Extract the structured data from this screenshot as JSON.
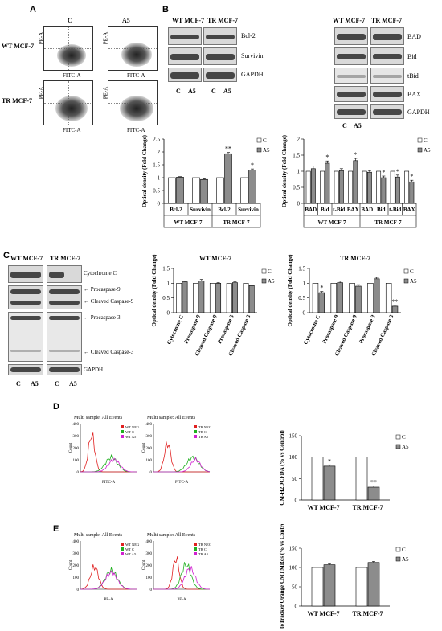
{
  "panels": {
    "A": "A",
    "B": "B",
    "C": "C",
    "D": "D",
    "E": "E"
  },
  "panelA": {
    "col_c": "C",
    "col_a5": "A5",
    "row_wt": "WT MCF-7",
    "row_tr": "TR MCF-7",
    "y_axis": "PE-A",
    "x_axis": "FITC-A"
  },
  "panelB": {
    "left_groups": [
      "WT MCF-7",
      "TR MCF-7"
    ],
    "left_bands": [
      "Bcl-2",
      "Survivin",
      "GAPDH"
    ],
    "left_lanes": [
      "C",
      "A5",
      "C",
      "A5"
    ],
    "right_groups": [
      "WT MCF-7",
      "TR MCF-7"
    ],
    "right_bands": [
      "BAD",
      "Bid",
      "tBid",
      "BAX",
      "GAPDH"
    ],
    "right_lanes": [
      "C",
      "A5"
    ]
  },
  "panelC": {
    "groups": [
      "WT MCF-7",
      "TR MCF-7"
    ],
    "bands": [
      "Cytochrome C",
      "← Procaspase-9",
      "← Cleaved Caspase-9",
      "← Procaspase-3",
      "← Cleaved Caspase-3",
      "GAPDH"
    ],
    "lanes": [
      "C",
      "A5",
      "C",
      "A5"
    ]
  },
  "panelD": {
    "hist1_title": "Multi sample: All Events",
    "hist2_title": "Multi sample: All Events",
    "hist1_legend": [
      "WT NEG",
      "WT C",
      "WT A5"
    ],
    "hist2_legend": [
      "TR NEG",
      "TR C",
      "TR A5"
    ],
    "x_axis": "FITC-A",
    "y_axis": "Count",
    "y_ticks": [
      "0",
      "100",
      "200",
      "300",
      "400"
    ]
  },
  "panelE": {
    "hist1_title": "Multi sample: All Events",
    "hist2_title": "Multi sample: All Events",
    "hist1_legend": [
      "WT NEG",
      "WT C",
      "WT A5"
    ],
    "hist2_legend": [
      "TR NEG",
      "TR C",
      "TR A5"
    ],
    "x_axis": "PE-A",
    "y_axis": "Count",
    "y_ticks": [
      "0",
      "100",
      "200",
      "300",
      "400"
    ]
  },
  "colors": {
    "neg": "#e02020",
    "c": "#20b020",
    "a5": "#d020d0",
    "bar_c": "#ffffff",
    "bar_a5": "#8c8c8c"
  },
  "chart_data": [
    {
      "id": "B_left",
      "type": "bar",
      "categories": [
        "Bcl-2",
        "Survivin",
        "Bcl-2",
        "Survivin"
      ],
      "groups": [
        "WT MCF-7",
        "TR MCF-7"
      ],
      "series": [
        {
          "name": "C",
          "values": [
            1,
            1,
            1,
            1
          ]
        },
        {
          "name": "A5",
          "values": [
            1.02,
            0.93,
            1.93,
            1.3
          ]
        }
      ],
      "errors": [
        0.02,
        0.03,
        0.05,
        0.04
      ],
      "annotations": [
        "",
        "",
        "**",
        "*"
      ],
      "ylabel": "Optical density (Fold Change)",
      "ylim": [
        0,
        2.5
      ],
      "yticks": [
        "0",
        "0.5",
        "1",
        "1.5",
        "2",
        "2.5"
      ],
      "legend": "top-right"
    },
    {
      "id": "B_right",
      "type": "bar",
      "categories": [
        "BAD",
        "Bid",
        "t-Bid",
        "BAX",
        "BAD",
        "Bid",
        "t-Bid",
        "BAX"
      ],
      "groups": [
        "WT MCF-7",
        "TR MCF-7"
      ],
      "series": [
        {
          "name": "C",
          "values": [
            1,
            1,
            1,
            1,
            1,
            1,
            1,
            1
          ]
        },
        {
          "name": "A5",
          "values": [
            1.08,
            1.25,
            1.02,
            1.33,
            0.97,
            0.8,
            0.82,
            0.67
          ]
        }
      ],
      "errors": [
        0.08,
        0.07,
        0.06,
        0.07,
        0.05,
        0.05,
        0.06,
        0.05
      ],
      "annotations": [
        "",
        "*",
        "",
        "*",
        "",
        "*",
        "*",
        "*"
      ],
      "ylabel": "Optical density (Fold Change)",
      "ylim": [
        0,
        2
      ],
      "yticks": [
        "0",
        "0.5",
        "1",
        "1.5",
        "2"
      ],
      "legend": "top-right"
    },
    {
      "id": "C_wt",
      "type": "bar",
      "title": "WT MCF-7",
      "categories": [
        "Cytocrome C",
        "Procaspase 9",
        "Cleaved Caspase 9",
        "Procaspase 3",
        "Cleaved Caspase 3"
      ],
      "series": [
        {
          "name": "C",
          "values": [
            1,
            1,
            1,
            1,
            1
          ]
        },
        {
          "name": "A5",
          "values": [
            1.05,
            1.08,
            1.0,
            1.02,
            0.92
          ]
        }
      ],
      "errors": [
        0.03,
        0.05,
        0.02,
        0.03,
        0.02
      ],
      "annotations": [
        "",
        "",
        "",
        "",
        ""
      ],
      "ylabel": "Optical density (Fold Change)",
      "ylim": [
        0,
        1.5
      ],
      "yticks": [
        "0",
        "0.5",
        "1",
        "1.5"
      ],
      "legend": "top-right"
    },
    {
      "id": "C_tr",
      "type": "bar",
      "title": "TR MCF-7",
      "categories": [
        "Cytocrome C",
        "Procaspase 9",
        "Cleaved Caspase 9",
        "Procaspase 3",
        "Cleaved Caspase 3"
      ],
      "series": [
        {
          "name": "C",
          "values": [
            1,
            1,
            1,
            1,
            1
          ]
        },
        {
          "name": "A5",
          "values": [
            0.68,
            1.02,
            0.9,
            1.15,
            0.22
          ]
        }
      ],
      "errors": [
        0.04,
        0.05,
        0.05,
        0.05,
        0.03
      ],
      "annotations": [
        "*",
        "",
        "",
        "",
        "**"
      ],
      "ylabel": "Optical density (Fold Change)",
      "ylim": [
        0,
        1.5
      ],
      "yticks": [
        "0",
        "0.5",
        "1",
        "1.5"
      ],
      "legend": "top-right"
    },
    {
      "id": "D_bar",
      "type": "bar",
      "categories": [
        "WT MCF-7",
        "TR MCF-7"
      ],
      "series": [
        {
          "name": "C",
          "values": [
            100,
            100
          ]
        },
        {
          "name": "A5",
          "values": [
            79,
            30
          ]
        }
      ],
      "errors": [
        3,
        3
      ],
      "annotations": [
        "*",
        "**"
      ],
      "ylabel": "CM-H2DCFDA (% vs Control)",
      "ylim": [
        0,
        150
      ],
      "yticks": [
        "0",
        "50",
        "100",
        "150"
      ],
      "legend": "top-right"
    },
    {
      "id": "E_bar",
      "type": "bar",
      "categories": [
        "WT MCF-7",
        "TR MCF-7"
      ],
      "series": [
        {
          "name": "C",
          "values": [
            100,
            100
          ]
        },
        {
          "name": "A5",
          "values": [
            107,
            113
          ]
        }
      ],
      "errors": [
        3,
        3
      ],
      "annotations": [
        "",
        ""
      ],
      "ylabel": "MitoTracker Orange CMTMRos (% vs Control)",
      "ylim": [
        0,
        150
      ],
      "yticks": [
        "0",
        "50",
        "100",
        "150"
      ],
      "legend": "top-right"
    }
  ]
}
